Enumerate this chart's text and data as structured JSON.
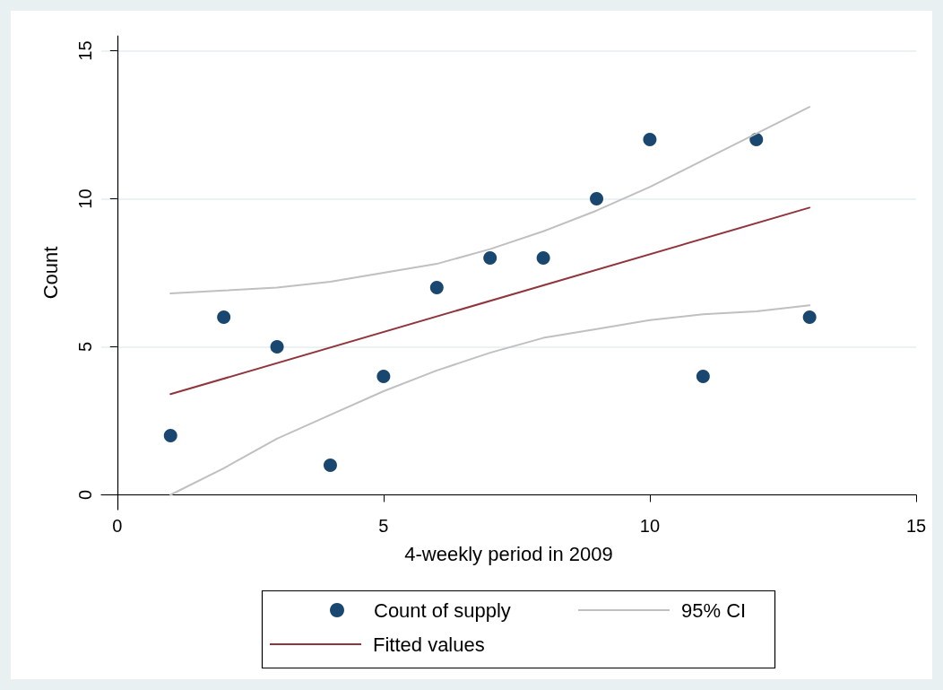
{
  "chart_data": {
    "type": "scatter",
    "xlabel": "4-weekly period in 2009",
    "ylabel": "Count",
    "xlim": [
      -0.3,
      15
    ],
    "xticks": [
      0,
      5,
      10,
      15
    ],
    "ylim": [
      -0.5,
      15.5
    ],
    "yticks": [
      0,
      5,
      10,
      15
    ],
    "grid": "y",
    "legend": "bottom",
    "series": [
      {
        "name": "Count of supply",
        "type": "scatter",
        "marker": "circle",
        "color": "#1a476f",
        "x": [
          1,
          2,
          3,
          4,
          5,
          6,
          7,
          8,
          9,
          10,
          11,
          12,
          13
        ],
        "values": [
          2,
          6,
          5,
          1,
          4,
          7,
          8,
          8,
          10,
          12,
          4,
          12,
          6
        ]
      },
      {
        "name": "95% CI",
        "type": "line",
        "marker": "none",
        "line_style": "solid",
        "color": "#c0c0c0",
        "x": [
          1,
          2,
          3,
          4,
          5,
          6,
          7,
          8,
          9,
          10,
          11,
          12,
          13
        ],
        "values": [
          6.8,
          6.9,
          7.0,
          7.2,
          7.5,
          7.8,
          8.3,
          8.9,
          9.6,
          10.4,
          11.3,
          12.2,
          13.1
        ]
      },
      {
        "type": "line",
        "marker": "none",
        "line_style": "solid",
        "color": "#c0c0c0",
        "x": [
          1,
          2,
          3,
          4,
          5,
          6,
          7,
          8,
          9,
          10,
          11,
          12,
          13
        ],
        "values": [
          0.0,
          0.9,
          1.9,
          2.7,
          3.5,
          4.2,
          4.8,
          5.3,
          5.6,
          5.9,
          6.1,
          6.2,
          6.4
        ]
      },
      {
        "name": "Fitted values",
        "type": "line",
        "marker": "none",
        "line_style": "solid",
        "color": "#90353b",
        "x": [
          1,
          13
        ],
        "values": [
          3.4,
          9.7
        ]
      }
    ]
  }
}
